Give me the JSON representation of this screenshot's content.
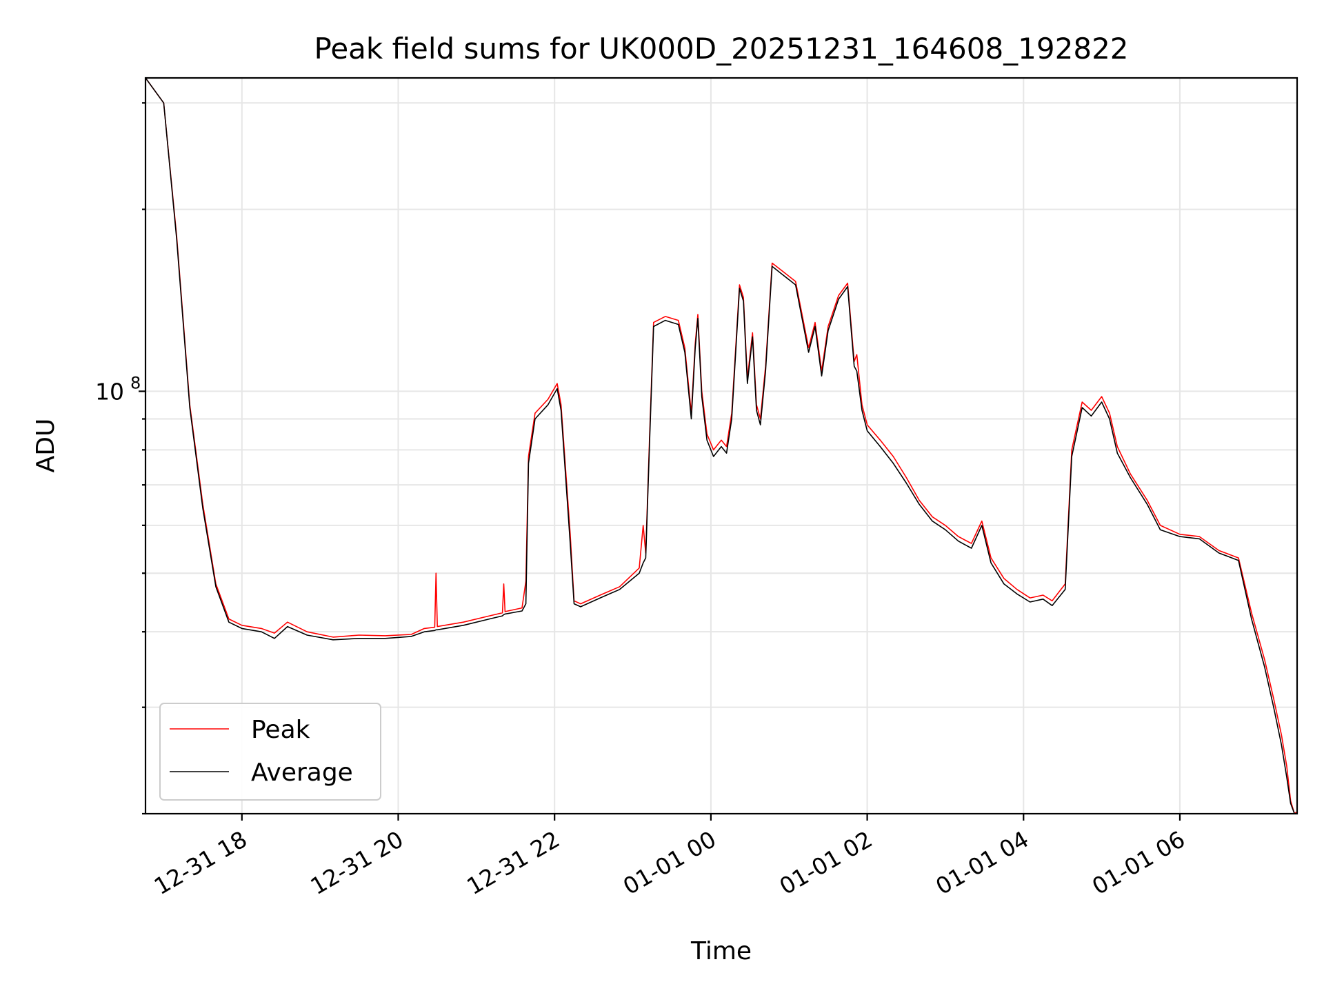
{
  "chart_data": {
    "type": "line",
    "title": "Peak field sums for UK000D_20251231_164608_192822",
    "xlabel": "Time",
    "ylabel": "ADU",
    "yscale": "log",
    "grid": true,
    "legend_position": "lower-left",
    "xlim": [
      "2025-12-31 16:46",
      "2026-01-01 07:30"
    ],
    "ylim": [
      20000000,
      330000000
    ],
    "x_ticks": [
      {
        "label": "12-31 18",
        "value": "2025-12-31 18:00"
      },
      {
        "label": "12-31 20",
        "value": "2025-12-31 20:00"
      },
      {
        "label": "12-31 22",
        "value": "2025-12-31 22:00"
      },
      {
        "label": "01-01 00",
        "value": "2026-01-01 00:00"
      },
      {
        "label": "01-01 02",
        "value": "2026-01-01 02:00"
      },
      {
        "label": "01-01 04",
        "value": "2026-01-01 04:00"
      },
      {
        "label": "01-01 06",
        "value": "2026-01-01 06:00"
      }
    ],
    "y_ticks": [
      {
        "label": "10",
        "exponent": "8",
        "value": 100000000
      }
    ],
    "series": [
      {
        "name": "Peak",
        "color": "#ff0000",
        "points": [
          [
            "2025-12-31 16:46",
            330000000
          ],
          [
            "2025-12-31 17:00",
            300000000
          ],
          [
            "2025-12-31 17:10",
            180000000
          ],
          [
            "2025-12-31 17:20",
            95000000
          ],
          [
            "2025-12-31 17:30",
            65000000
          ],
          [
            "2025-12-31 17:40",
            48000000
          ],
          [
            "2025-12-31 17:50",
            42000000
          ],
          [
            "2025-12-31 18:00",
            41000000
          ],
          [
            "2025-12-31 18:15",
            40500000
          ],
          [
            "2025-12-31 18:25",
            39800000
          ],
          [
            "2025-12-31 18:35",
            41500000
          ],
          [
            "2025-12-31 18:50",
            40000000
          ],
          [
            "2025-12-31 19:10",
            39200000
          ],
          [
            "2025-12-31 19:30",
            39500000
          ],
          [
            "2025-12-31 19:50",
            39400000
          ],
          [
            "2025-12-31 20:10",
            39600000
          ],
          [
            "2025-12-31 20:20",
            40500000
          ],
          [
            "2025-12-31 20:28",
            40700000
          ],
          [
            "2025-12-31 20:29",
            50000000
          ],
          [
            "2025-12-31 20:30",
            40800000
          ],
          [
            "2025-12-31 20:50",
            41500000
          ],
          [
            "2025-12-31 21:10",
            42500000
          ],
          [
            "2025-12-31 21:20",
            43000000
          ],
          [
            "2025-12-31 21:21",
            48000000
          ],
          [
            "2025-12-31 21:22",
            43200000
          ],
          [
            "2025-12-31 21:35",
            43800000
          ],
          [
            "2025-12-31 21:38",
            48500000
          ],
          [
            "2025-12-31 21:40",
            78000000
          ],
          [
            "2025-12-31 21:45",
            92000000
          ],
          [
            "2025-12-31 21:55",
            97000000
          ],
          [
            "2025-12-31 22:02",
            103000000
          ],
          [
            "2025-12-31 22:05",
            95000000
          ],
          [
            "2025-12-31 22:12",
            58000000
          ],
          [
            "2025-12-31 22:15",
            45000000
          ],
          [
            "2025-12-31 22:20",
            44500000
          ],
          [
            "2025-12-31 22:35",
            46000000
          ],
          [
            "2025-12-31 22:50",
            47500000
          ],
          [
            "2025-12-31 23:05",
            51000000
          ],
          [
            "2025-12-31 23:08",
            60000000
          ],
          [
            "2025-12-31 23:10",
            54000000
          ],
          [
            "2025-12-31 23:13",
            85000000
          ],
          [
            "2025-12-31 23:16",
            130000000
          ],
          [
            "2025-12-31 23:25",
            133000000
          ],
          [
            "2025-12-31 23:35",
            131000000
          ],
          [
            "2025-12-31 23:40",
            118000000
          ],
          [
            "2025-12-31 23:45",
            92000000
          ],
          [
            "2025-12-31 23:48",
            120000000
          ],
          [
            "2025-12-31 23:50",
            134000000
          ],
          [
            "2025-12-31 23:53",
            100000000
          ],
          [
            "2025-12-31 23:57",
            85000000
          ],
          [
            "2026-01-01 00:02",
            80000000
          ],
          [
            "2026-01-01 00:08",
            83000000
          ],
          [
            "2026-01-01 00:12",
            81000000
          ],
          [
            "2026-01-01 00:16",
            92000000
          ],
          [
            "2026-01-01 00:22",
            150000000
          ],
          [
            "2026-01-01 00:25",
            143000000
          ],
          [
            "2026-01-01 00:28",
            105000000
          ],
          [
            "2026-01-01 00:32",
            125000000
          ],
          [
            "2026-01-01 00:35",
            95000000
          ],
          [
            "2026-01-01 00:38",
            90000000
          ],
          [
            "2026-01-01 00:42",
            110000000
          ],
          [
            "2026-01-01 00:47",
            163000000
          ],
          [
            "2026-01-01 00:55",
            158000000
          ],
          [
            "2026-01-01 01:05",
            152000000
          ],
          [
            "2026-01-01 01:15",
            118000000
          ],
          [
            "2026-01-01 01:20",
            130000000
          ],
          [
            "2026-01-01 01:25",
            108000000
          ],
          [
            "2026-01-01 01:30",
            128000000
          ],
          [
            "2026-01-01 01:38",
            144000000
          ],
          [
            "2026-01-01 01:45",
            151000000
          ],
          [
            "2026-01-01 01:50",
            112000000
          ],
          [
            "2026-01-01 01:52",
            115000000
          ],
          [
            "2026-01-01 01:56",
            95000000
          ],
          [
            "2026-01-01 02:00",
            88000000
          ],
          [
            "2026-01-01 02:10",
            83000000
          ],
          [
            "2026-01-01 02:20",
            78000000
          ],
          [
            "2026-01-01 02:30",
            72000000
          ],
          [
            "2026-01-01 02:40",
            66000000
          ],
          [
            "2026-01-01 02:50",
            62000000
          ],
          [
            "2026-01-01 03:00",
            60000000
          ],
          [
            "2026-01-01 03:10",
            57500000
          ],
          [
            "2026-01-01 03:20",
            56000000
          ],
          [
            "2026-01-01 03:28",
            61000000
          ],
          [
            "2026-01-01 03:35",
            53000000
          ],
          [
            "2026-01-01 03:45",
            49000000
          ],
          [
            "2026-01-01 03:55",
            47000000
          ],
          [
            "2026-01-01 04:05",
            45500000
          ],
          [
            "2026-01-01 04:15",
            46000000
          ],
          [
            "2026-01-01 04:22",
            45000000
          ],
          [
            "2026-01-01 04:32",
            48000000
          ],
          [
            "2026-01-01 04:37",
            80000000
          ],
          [
            "2026-01-01 04:45",
            96000000
          ],
          [
            "2026-01-01 04:52",
            93000000
          ],
          [
            "2026-01-01 05:00",
            98000000
          ],
          [
            "2026-01-01 05:06",
            92000000
          ],
          [
            "2026-01-01 05:12",
            81000000
          ],
          [
            "2026-01-01 05:22",
            73000000
          ],
          [
            "2026-01-01 05:35",
            66000000
          ],
          [
            "2026-01-01 05:45",
            60000000
          ],
          [
            "2026-01-01 06:00",
            58000000
          ],
          [
            "2026-01-01 06:15",
            57500000
          ],
          [
            "2026-01-01 06:30",
            54500000
          ],
          [
            "2026-01-01 06:40",
            53500000
          ],
          [
            "2026-01-01 06:45",
            53000000
          ],
          [
            "2026-01-01 06:55",
            43000000
          ],
          [
            "2026-01-01 07:05",
            36000000
          ],
          [
            "2026-01-01 07:12",
            31000000
          ],
          [
            "2026-01-01 07:18",
            27000000
          ],
          [
            "2026-01-01 07:22",
            24000000
          ],
          [
            "2026-01-01 07:25",
            21000000
          ],
          [
            "2026-01-01 07:28",
            20000000
          ],
          [
            "2026-01-01 07:29",
            20100000
          ],
          [
            "2026-01-01 07:30",
            20000000
          ]
        ]
      },
      {
        "name": "Average",
        "color": "#000000",
        "points": [
          [
            "2025-12-31 16:46",
            330000000
          ],
          [
            "2025-12-31 17:00",
            300000000
          ],
          [
            "2025-12-31 17:10",
            178000000
          ],
          [
            "2025-12-31 17:20",
            94000000
          ],
          [
            "2025-12-31 17:30",
            64000000
          ],
          [
            "2025-12-31 17:40",
            47500000
          ],
          [
            "2025-12-31 17:50",
            41500000
          ],
          [
            "2025-12-31 18:00",
            40500000
          ],
          [
            "2025-12-31 18:15",
            40000000
          ],
          [
            "2025-12-31 18:25",
            39000000
          ],
          [
            "2025-12-31 18:35",
            40800000
          ],
          [
            "2025-12-31 18:50",
            39500000
          ],
          [
            "2025-12-31 19:10",
            38800000
          ],
          [
            "2025-12-31 19:30",
            39000000
          ],
          [
            "2025-12-31 19:50",
            39000000
          ],
          [
            "2025-12-31 20:10",
            39300000
          ],
          [
            "2025-12-31 20:20",
            40000000
          ],
          [
            "2025-12-31 20:28",
            40200000
          ],
          [
            "2025-12-31 20:29",
            40300000
          ],
          [
            "2025-12-31 20:30",
            40300000
          ],
          [
            "2025-12-31 20:50",
            41000000
          ],
          [
            "2025-12-31 21:10",
            42000000
          ],
          [
            "2025-12-31 21:20",
            42500000
          ],
          [
            "2025-12-31 21:21",
            42700000
          ],
          [
            "2025-12-31 21:22",
            42800000
          ],
          [
            "2025-12-31 21:35",
            43300000
          ],
          [
            "2025-12-31 21:38",
            44500000
          ],
          [
            "2025-12-31 21:40",
            76000000
          ],
          [
            "2025-12-31 21:45",
            90000000
          ],
          [
            "2025-12-31 21:55",
            95000000
          ],
          [
            "2025-12-31 22:02",
            101000000
          ],
          [
            "2025-12-31 22:05",
            93000000
          ],
          [
            "2025-12-31 22:12",
            56000000
          ],
          [
            "2025-12-31 22:15",
            44500000
          ],
          [
            "2025-12-31 22:20",
            44000000
          ],
          [
            "2025-12-31 22:35",
            45500000
          ],
          [
            "2025-12-31 22:50",
            47000000
          ],
          [
            "2025-12-31 23:05",
            50000000
          ],
          [
            "2025-12-31 23:08",
            52000000
          ],
          [
            "2025-12-31 23:10",
            53000000
          ],
          [
            "2025-12-31 23:13",
            83000000
          ],
          [
            "2025-12-31 23:16",
            128000000
          ],
          [
            "2025-12-31 23:25",
            131000000
          ],
          [
            "2025-12-31 23:35",
            129000000
          ],
          [
            "2025-12-31 23:40",
            116000000
          ],
          [
            "2025-12-31 23:45",
            90000000
          ],
          [
            "2025-12-31 23:48",
            118000000
          ],
          [
            "2025-12-31 23:50",
            132000000
          ],
          [
            "2025-12-31 23:53",
            98000000
          ],
          [
            "2025-12-31 23:57",
            83000000
          ],
          [
            "2026-01-01 00:02",
            78000000
          ],
          [
            "2026-01-01 00:08",
            81000000
          ],
          [
            "2026-01-01 00:12",
            79000000
          ],
          [
            "2026-01-01 00:16",
            90000000
          ],
          [
            "2026-01-01 00:22",
            148000000
          ],
          [
            "2026-01-01 00:25",
            141000000
          ],
          [
            "2026-01-01 00:28",
            103000000
          ],
          [
            "2026-01-01 00:32",
            123000000
          ],
          [
            "2026-01-01 00:35",
            93000000
          ],
          [
            "2026-01-01 00:38",
            88000000
          ],
          [
            "2026-01-01 00:42",
            108000000
          ],
          [
            "2026-01-01 00:47",
            161000000
          ],
          [
            "2026-01-01 00:55",
            156000000
          ],
          [
            "2026-01-01 01:05",
            150000000
          ],
          [
            "2026-01-01 01:15",
            116000000
          ],
          [
            "2026-01-01 01:20",
            128000000
          ],
          [
            "2026-01-01 01:25",
            106000000
          ],
          [
            "2026-01-01 01:30",
            126000000
          ],
          [
            "2026-01-01 01:38",
            142000000
          ],
          [
            "2026-01-01 01:45",
            149000000
          ],
          [
            "2026-01-01 01:50",
            110000000
          ],
          [
            "2026-01-01 01:52",
            108000000
          ],
          [
            "2026-01-01 01:56",
            93000000
          ],
          [
            "2026-01-01 02:00",
            86000000
          ],
          [
            "2026-01-01 02:10",
            81000000
          ],
          [
            "2026-01-01 02:20",
            76000000
          ],
          [
            "2026-01-01 02:30",
            70500000
          ],
          [
            "2026-01-01 02:40",
            65000000
          ],
          [
            "2026-01-01 02:50",
            61000000
          ],
          [
            "2026-01-01 03:00",
            59000000
          ],
          [
            "2026-01-01 03:10",
            56500000
          ],
          [
            "2026-01-01 03:20",
            55000000
          ],
          [
            "2026-01-01 03:28",
            60000000
          ],
          [
            "2026-01-01 03:35",
            52000000
          ],
          [
            "2026-01-01 03:45",
            48000000
          ],
          [
            "2026-01-01 03:55",
            46200000
          ],
          [
            "2026-01-01 04:05",
            44800000
          ],
          [
            "2026-01-01 04:15",
            45300000
          ],
          [
            "2026-01-01 04:22",
            44200000
          ],
          [
            "2026-01-01 04:32",
            47000000
          ],
          [
            "2026-01-01 04:37",
            78000000
          ],
          [
            "2026-01-01 04:45",
            94000000
          ],
          [
            "2026-01-01 04:52",
            91000000
          ],
          [
            "2026-01-01 05:00",
            96000000
          ],
          [
            "2026-01-01 05:06",
            90000000
          ],
          [
            "2026-01-01 05:12",
            79000000
          ],
          [
            "2026-01-01 05:22",
            72000000
          ],
          [
            "2026-01-01 05:35",
            65000000
          ],
          [
            "2026-01-01 05:45",
            59000000
          ],
          [
            "2026-01-01 06:00",
            57500000
          ],
          [
            "2026-01-01 06:15",
            57000000
          ],
          [
            "2026-01-01 06:30",
            54000000
          ],
          [
            "2026-01-01 06:40",
            53000000
          ],
          [
            "2026-01-01 06:45",
            52500000
          ],
          [
            "2026-01-01 06:55",
            42000000
          ],
          [
            "2026-01-01 07:05",
            35000000
          ],
          [
            "2026-01-01 07:12",
            30000000
          ],
          [
            "2026-01-01 07:18",
            26000000
          ],
          [
            "2026-01-01 07:22",
            23000000
          ],
          [
            "2026-01-01 07:25",
            20800000
          ],
          [
            "2026-01-01 07:28",
            20000000
          ],
          [
            "2026-01-01 07:29",
            20000000
          ],
          [
            "2026-01-01 07:30",
            20000000
          ]
        ]
      }
    ]
  }
}
